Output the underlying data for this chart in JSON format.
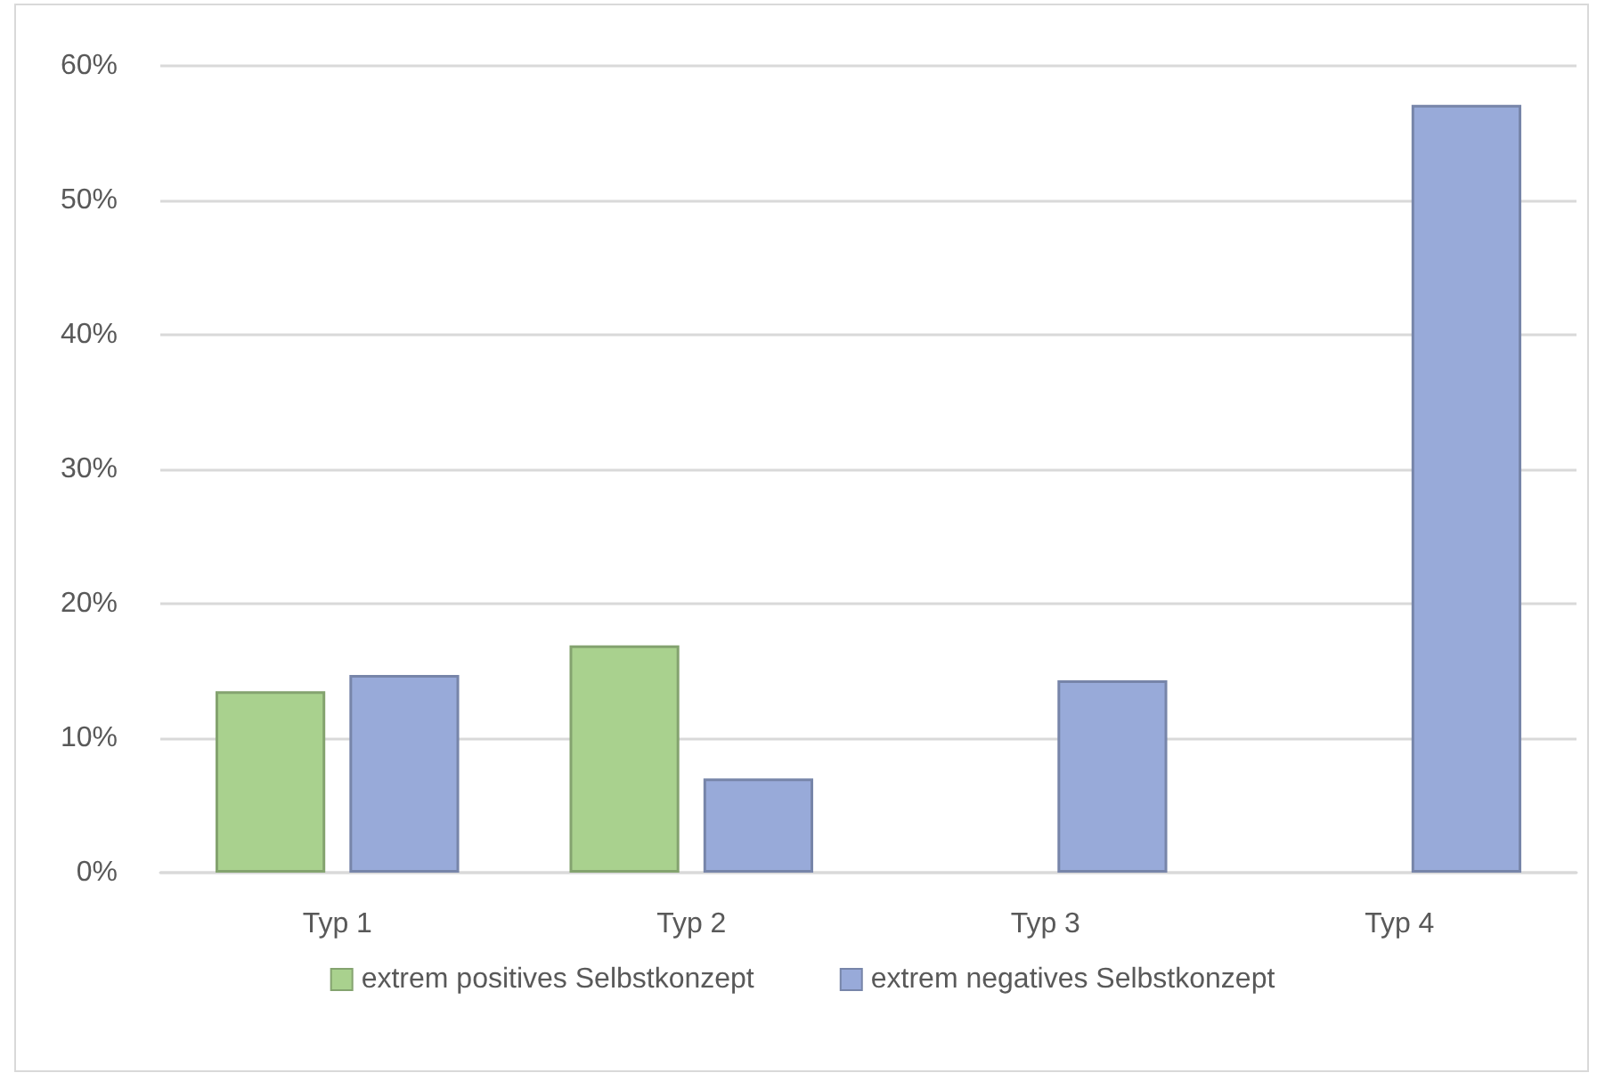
{
  "chart_data": {
    "type": "bar",
    "categories": [
      "Typ 1",
      "Typ 2",
      "Typ 3",
      "Typ 4"
    ],
    "series": [
      {
        "name": "extrem positives Selbstkonzept",
        "color": "#a9d18e",
        "values": [
          13.5,
          16.9,
          null,
          null
        ]
      },
      {
        "name": "extrem negatives Selbstkonzept",
        "color": "#98aad9",
        "values": [
          14.7,
          7.0,
          14.3,
          57.1
        ]
      }
    ],
    "ylim": [
      0,
      60
    ],
    "yticks": [
      {
        "value": 0,
        "label": "0%"
      },
      {
        "value": 10,
        "label": "10%"
      },
      {
        "value": 20,
        "label": "20%"
      },
      {
        "value": 30,
        "label": "30%"
      },
      {
        "value": 40,
        "label": "40%"
      },
      {
        "value": 50,
        "label": "50%"
      },
      {
        "value": 60,
        "label": "60%"
      }
    ],
    "grid": "y",
    "legend": "bottom"
  }
}
